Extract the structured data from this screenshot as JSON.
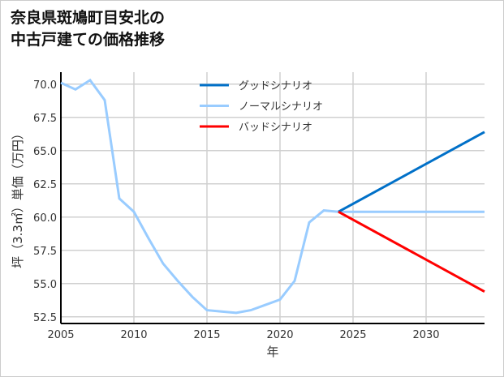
{
  "chart_data": {
    "type": "line",
    "title_lines": [
      "奈良県斑鳩町目安北の",
      "中古戸建ての価格推移"
    ],
    "xlabel": "年",
    "ylabel": "坪（3.3㎡）単価（万円）",
    "xlim": [
      2005,
      2034
    ],
    "ylim": [
      52.0,
      70.9
    ],
    "xticks": [
      2005,
      2010,
      2015,
      2020,
      2025,
      2030
    ],
    "yticks": [
      52.5,
      55.0,
      57.5,
      60.0,
      62.5,
      65.0,
      67.5,
      70.0
    ],
    "grid": true,
    "legend_position": "top-center",
    "series": [
      {
        "name": "グッドシナリオ",
        "color": "#0070c8",
        "x": [
          2024,
          2034
        ],
        "y": [
          60.4,
          66.4
        ]
      },
      {
        "name": "ノーマルシナリオ",
        "color": "#99ccff",
        "x": [
          2005,
          2006,
          2007,
          2008,
          2009,
          2010,
          2011,
          2012,
          2013,
          2014,
          2015,
          2016,
          2017,
          2018,
          2019,
          2020,
          2021,
          2022,
          2023,
          2024,
          2034
        ],
        "y": [
          70.1,
          69.6,
          70.3,
          68.8,
          61.4,
          60.4,
          58.4,
          56.5,
          55.2,
          54.0,
          53.0,
          52.9,
          52.8,
          53.0,
          53.4,
          53.8,
          55.2,
          59.6,
          60.5,
          60.4,
          60.4
        ]
      },
      {
        "name": "バッドシナリオ",
        "color": "#ff0000",
        "x": [
          2024,
          2034
        ],
        "y": [
          60.4,
          54.4
        ]
      }
    ]
  }
}
